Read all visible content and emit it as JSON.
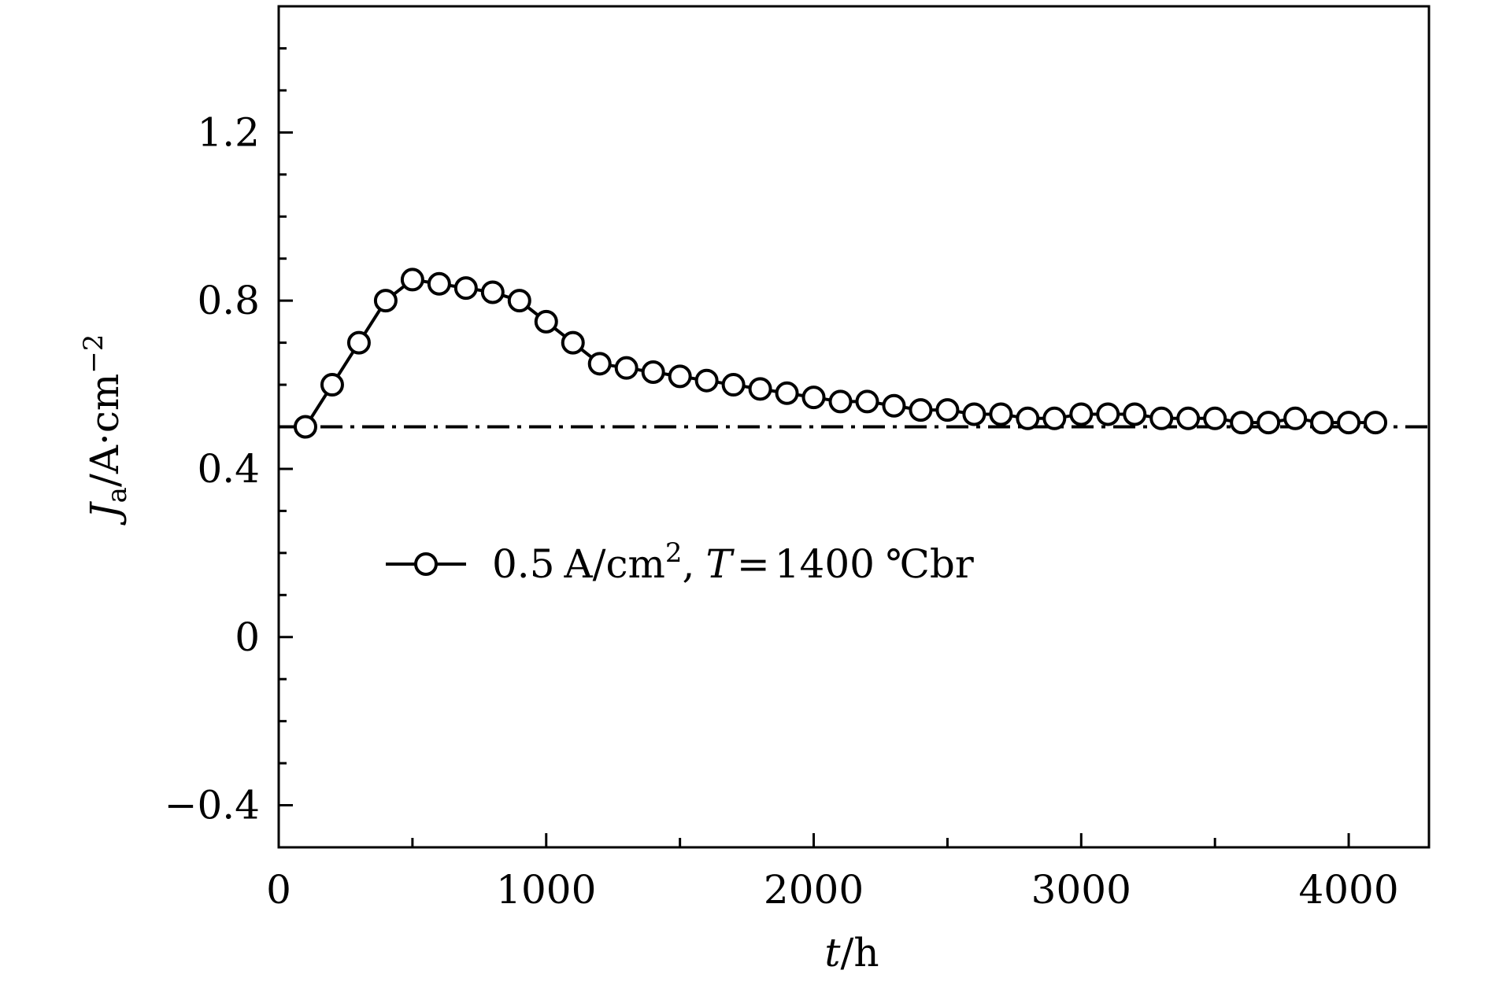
{
  "chart_data": {
    "type": "line",
    "xlabel": "t/h",
    "ylabel": "Ja/A·cm−2",
    "xlim": [
      0,
      4300
    ],
    "ylim": [
      -0.5,
      1.5
    ],
    "x_ticks": [
      0,
      1000,
      2000,
      3000,
      4000
    ],
    "x_tick_labels": [
      "0",
      "1000",
      "2000",
      "3000",
      "4000"
    ],
    "y_ticks": [
      -0.4,
      0,
      0.4,
      0.8,
      1.2
    ],
    "y_tick_labels": [
      "−0.4",
      "0",
      "0.4",
      "0.8",
      "1.2"
    ],
    "grid": false,
    "legend_position": "center-left",
    "reference_line": {
      "y": 0.5,
      "style": "dash-dot"
    },
    "series": [
      {
        "name": "0.5 A/cm², T = 1400 ℃br",
        "marker": "open-circle",
        "x": [
          100,
          200,
          300,
          400,
          500,
          600,
          700,
          800,
          900,
          1000,
          1100,
          1200,
          1300,
          1400,
          1500,
          1600,
          1700,
          1800,
          1900,
          2000,
          2100,
          2200,
          2300,
          2400,
          2500,
          2600,
          2700,
          2800,
          2900,
          3000,
          3100,
          3200,
          3300,
          3400,
          3500,
          3600,
          3700,
          3800,
          3900,
          4000,
          4100
        ],
        "y": [
          0.5,
          0.6,
          0.7,
          0.8,
          0.85,
          0.84,
          0.83,
          0.82,
          0.8,
          0.75,
          0.7,
          0.65,
          0.64,
          0.63,
          0.62,
          0.61,
          0.6,
          0.59,
          0.58,
          0.57,
          0.56,
          0.56,
          0.55,
          0.54,
          0.54,
          0.53,
          0.53,
          0.52,
          0.52,
          0.53,
          0.53,
          0.53,
          0.52,
          0.52,
          0.52,
          0.51,
          0.51,
          0.52,
          0.51,
          0.51,
          0.51
        ]
      }
    ],
    "legend": {
      "value": "0.5",
      "unit": "A/cm",
      "unit_sup": "2",
      "t_symbol": "T",
      "equals": "=",
      "temperature": "1400",
      "temp_unit": "℃br"
    },
    "ylabel_parts": {
      "symbol": "J",
      "sub": "a",
      "unit": "/A·cm",
      "sup": "−2"
    },
    "xlabel_parts": {
      "symbol": "t",
      "unit": "/h"
    }
  }
}
